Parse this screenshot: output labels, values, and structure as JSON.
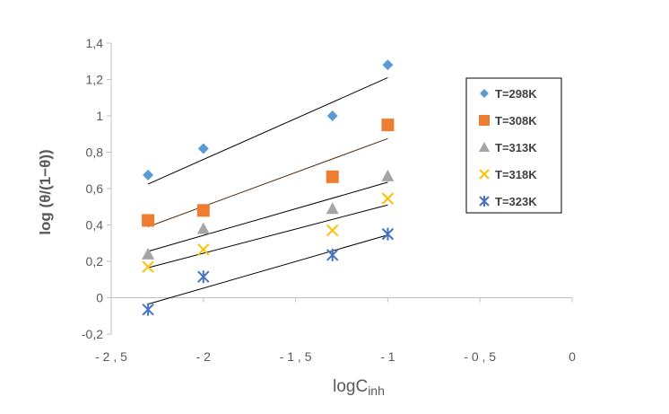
{
  "chart_data": {
    "type": "scatter",
    "title": "",
    "xlabel": "logC",
    "xlabel_subscript": "inh",
    "ylabel": "log (θ/(1−θ))",
    "xlim": [
      -2.5,
      0
    ],
    "ylim": [
      -0.2,
      1.4
    ],
    "x_ticks": [
      -2.5,
      -2,
      -1.5,
      -1,
      -0.5,
      0
    ],
    "x_tick_labels": [
      "- 2 , 5",
      "- 2",
      "- 1 , 5",
      "- 1",
      "- 0 , 5",
      "0"
    ],
    "y_ticks": [
      -0.2,
      0,
      0.2,
      0.4,
      0.6,
      0.8,
      1,
      1.2,
      1.4
    ],
    "y_tick_labels": [
      "-0,2",
      "0",
      "0,2",
      "0,4",
      "0,6",
      "0,8",
      "1",
      "1,2",
      "1,4"
    ],
    "grid": false,
    "legend_position": "right",
    "x": [
      -2.3,
      -2.0,
      -1.3,
      -1.0
    ],
    "series": [
      {
        "name": "T=298K",
        "marker": "diamond",
        "color": "#5B9BD5",
        "values": [
          0.675,
          0.82,
          1.0,
          1.28
        ],
        "fit": [
          0.625,
          1.21
        ],
        "fit_color": "#000000"
      },
      {
        "name": "T=308K",
        "marker": "square",
        "color": "#ED7D31",
        "values": [
          0.425,
          0.48,
          0.665,
          0.95
        ],
        "fit": [
          0.39,
          0.875
        ],
        "fit_color": "#4a2a10"
      },
      {
        "name": "T=313K",
        "marker": "triangle",
        "color": "#A5A5A5",
        "values": [
          0.24,
          0.38,
          0.49,
          0.67
        ],
        "fit": [
          0.255,
          0.635
        ],
        "fit_color": "#000000"
      },
      {
        "name": "T=318K",
        "marker": "x",
        "color": "#FFC000",
        "values": [
          0.17,
          0.265,
          0.37,
          0.545
        ],
        "fit": [
          0.165,
          0.51
        ],
        "fit_color": "#000000"
      },
      {
        "name": "T=323K",
        "marker": "star",
        "color": "#4472C4",
        "values": [
          -0.065,
          0.115,
          0.235,
          0.35
        ],
        "fit": [
          -0.035,
          0.345
        ],
        "fit_color": "#000000"
      }
    ]
  }
}
